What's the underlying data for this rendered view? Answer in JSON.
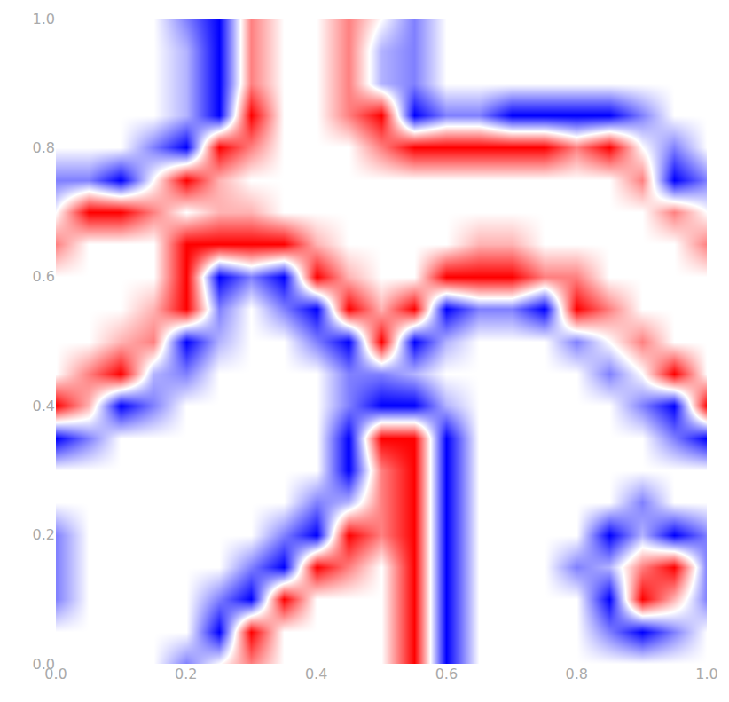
{
  "chart_data": {
    "type": "heatmap",
    "colors": [
      "#0000ff",
      "#ffffff",
      "#ff0000"
    ],
    "grid": false,
    "xlim": [
      0,
      1
    ],
    "ylim": [
      0,
      1
    ],
    "xticks": [
      {
        "value": 0,
        "label": "0.0"
      },
      {
        "value": 0.2,
        "label": "0.2"
      },
      {
        "value": 0.4,
        "label": "0.4"
      },
      {
        "value": 0.6,
        "label": "0.6"
      },
      {
        "value": 0.8,
        "label": "0.8"
      },
      {
        "value": 1,
        "label": "1.0"
      }
    ],
    "yticks": [
      {
        "value": 0,
        "label": "0.0"
      },
      {
        "value": 0.2,
        "label": "0.2"
      },
      {
        "value": 0.4,
        "label": "0.4"
      },
      {
        "value": 0.6,
        "label": "0.6"
      },
      {
        "value": 0.8,
        "label": "0.8"
      },
      {
        "value": 1,
        "label": "1.0"
      }
    ],
    "x": [
      0,
      0.05,
      0.1,
      0.15,
      0.2,
      0.25,
      0.3,
      0.35,
      0.4,
      0.45,
      0.5,
      0.55,
      0.6,
      0.65,
      0.7,
      0.75,
      0.8,
      0.85,
      0.9,
      0.95,
      1
    ],
    "y": [
      0,
      0.05,
      0.1,
      0.15,
      0.2,
      0.25,
      0.3,
      0.35,
      0.4,
      0.45,
      0.5,
      0.55,
      0.6,
      0.65,
      0.7,
      0.75,
      0.8,
      0.85,
      0.9,
      0.95,
      1
    ],
    "z": [
      [
        0,
        0,
        0,
        0,
        -0.5,
        0,
        0.5,
        0,
        0,
        0,
        0,
        1,
        -1,
        0,
        0,
        0,
        0,
        0,
        0,
        0,
        0
      ],
      [
        0,
        0,
        0,
        0,
        0,
        -1,
        1,
        0,
        0,
        0,
        0,
        1,
        -1,
        0,
        0,
        0,
        0,
        -0.5,
        -1,
        -0.5,
        0
      ],
      [
        -0.5,
        0,
        0,
        0,
        0,
        -0.5,
        -1,
        1,
        0,
        0,
        0,
        1,
        -1,
        0,
        0,
        0,
        0,
        -1,
        1,
        0.3,
        -0.5
      ],
      [
        -0.5,
        0,
        0,
        0,
        0,
        0,
        -0.5,
        -1,
        1,
        0.5,
        0,
        1,
        -1,
        0,
        0,
        0,
        -0.5,
        -0.3,
        0.5,
        1,
        -0.5
      ],
      [
        -0.5,
        0,
        0,
        0,
        0,
        0,
        0,
        -0.5,
        -1,
        1,
        0.5,
        1,
        -1,
        0,
        0,
        0,
        0,
        -1,
        -0.3,
        -1,
        -0.5
      ],
      [
        0,
        0,
        0,
        0,
        0,
        0,
        0,
        0,
        -0.5,
        -0.3,
        0.5,
        1,
        -1,
        0,
        0,
        0,
        0,
        0,
        -0.5,
        0,
        0
      ],
      [
        0,
        0,
        0,
        0,
        0,
        0,
        0,
        0,
        0,
        -1,
        0.5,
        1,
        -1,
        0,
        0,
        0,
        0,
        0,
        0,
        0,
        0
      ],
      [
        -1,
        -0.5,
        0,
        0,
        0,
        0,
        0,
        0,
        0,
        -1,
        1,
        1,
        -1,
        0,
        0,
        0,
        0,
        0,
        0,
        -0.5,
        -1
      ],
      [
        1,
        0.3,
        -1,
        -0.5,
        0,
        0,
        0,
        0,
        0,
        -0.5,
        -1,
        -1,
        -0.3,
        0,
        0,
        0,
        0,
        0,
        -0.5,
        -1,
        1
      ],
      [
        0,
        0.5,
        1,
        -0.3,
        -0.5,
        0,
        0,
        0,
        0,
        -0.5,
        -0.5,
        -0.3,
        0,
        0,
        0,
        0,
        0,
        -0.5,
        0,
        1,
        0
      ],
      [
        0,
        0,
        0.3,
        0.5,
        -1,
        -0.3,
        0,
        0,
        -0.5,
        -1,
        1,
        -1,
        -0.3,
        0,
        0,
        0,
        -0.5,
        0,
        0.5,
        0,
        0
      ],
      [
        0,
        0,
        0,
        0.3,
        1,
        -0.5,
        0,
        -0.5,
        -1,
        1,
        0.3,
        1,
        -1,
        -0.5,
        -0.5,
        -1,
        1,
        0.5,
        0,
        0,
        0
      ],
      [
        0,
        0,
        0,
        0,
        1,
        -1,
        -0.5,
        -1,
        1,
        0.3,
        0,
        0,
        1,
        1,
        1,
        0.5,
        0.5,
        0,
        0,
        0,
        0
      ],
      [
        0.5,
        0,
        0,
        0,
        1,
        1,
        1,
        1,
        0.3,
        0,
        0,
        0,
        0,
        0.3,
        0.3,
        0,
        0,
        0,
        0,
        0,
        0.5
      ],
      [
        0,
        1,
        1,
        0.5,
        0,
        0.3,
        0.3,
        0,
        0,
        0,
        0,
        0,
        0,
        0,
        0,
        0,
        0,
        0,
        0,
        0.5,
        0
      ],
      [
        -0.5,
        -0.5,
        -1,
        0,
        1,
        0.3,
        0,
        0,
        0,
        0,
        0,
        0,
        0,
        0,
        0,
        0,
        0,
        0,
        0.5,
        -1,
        -0.5
      ],
      [
        0,
        0,
        0,
        -0.5,
        -1,
        1,
        0.5,
        0,
        0,
        0,
        0.5,
        1,
        1,
        1,
        1,
        1,
        0.5,
        1,
        0,
        -0.5,
        0
      ],
      [
        0,
        0,
        0,
        0,
        -0.3,
        -1,
        1,
        0,
        0,
        0.5,
        1,
        -1,
        -0.5,
        -0.5,
        -1,
        -1,
        -1,
        -1,
        -0.5,
        0,
        0
      ],
      [
        0,
        0,
        0,
        0,
        -0.3,
        -1,
        0.5,
        0,
        0,
        0.5,
        -0.3,
        -0.5,
        0,
        0,
        0,
        0,
        0,
        0,
        0,
        0,
        0
      ],
      [
        0,
        0,
        0,
        0,
        -0.3,
        -1,
        0.5,
        0,
        0,
        0.5,
        -0.3,
        -0.5,
        0,
        0,
        0,
        0,
        0,
        0,
        0,
        0,
        0
      ],
      [
        0,
        0,
        0,
        0,
        -0.5,
        -1,
        0.5,
        0,
        0,
        0.5,
        0,
        -0.5,
        0,
        0,
        0,
        0,
        0,
        0,
        0,
        0,
        0
      ]
    ]
  }
}
